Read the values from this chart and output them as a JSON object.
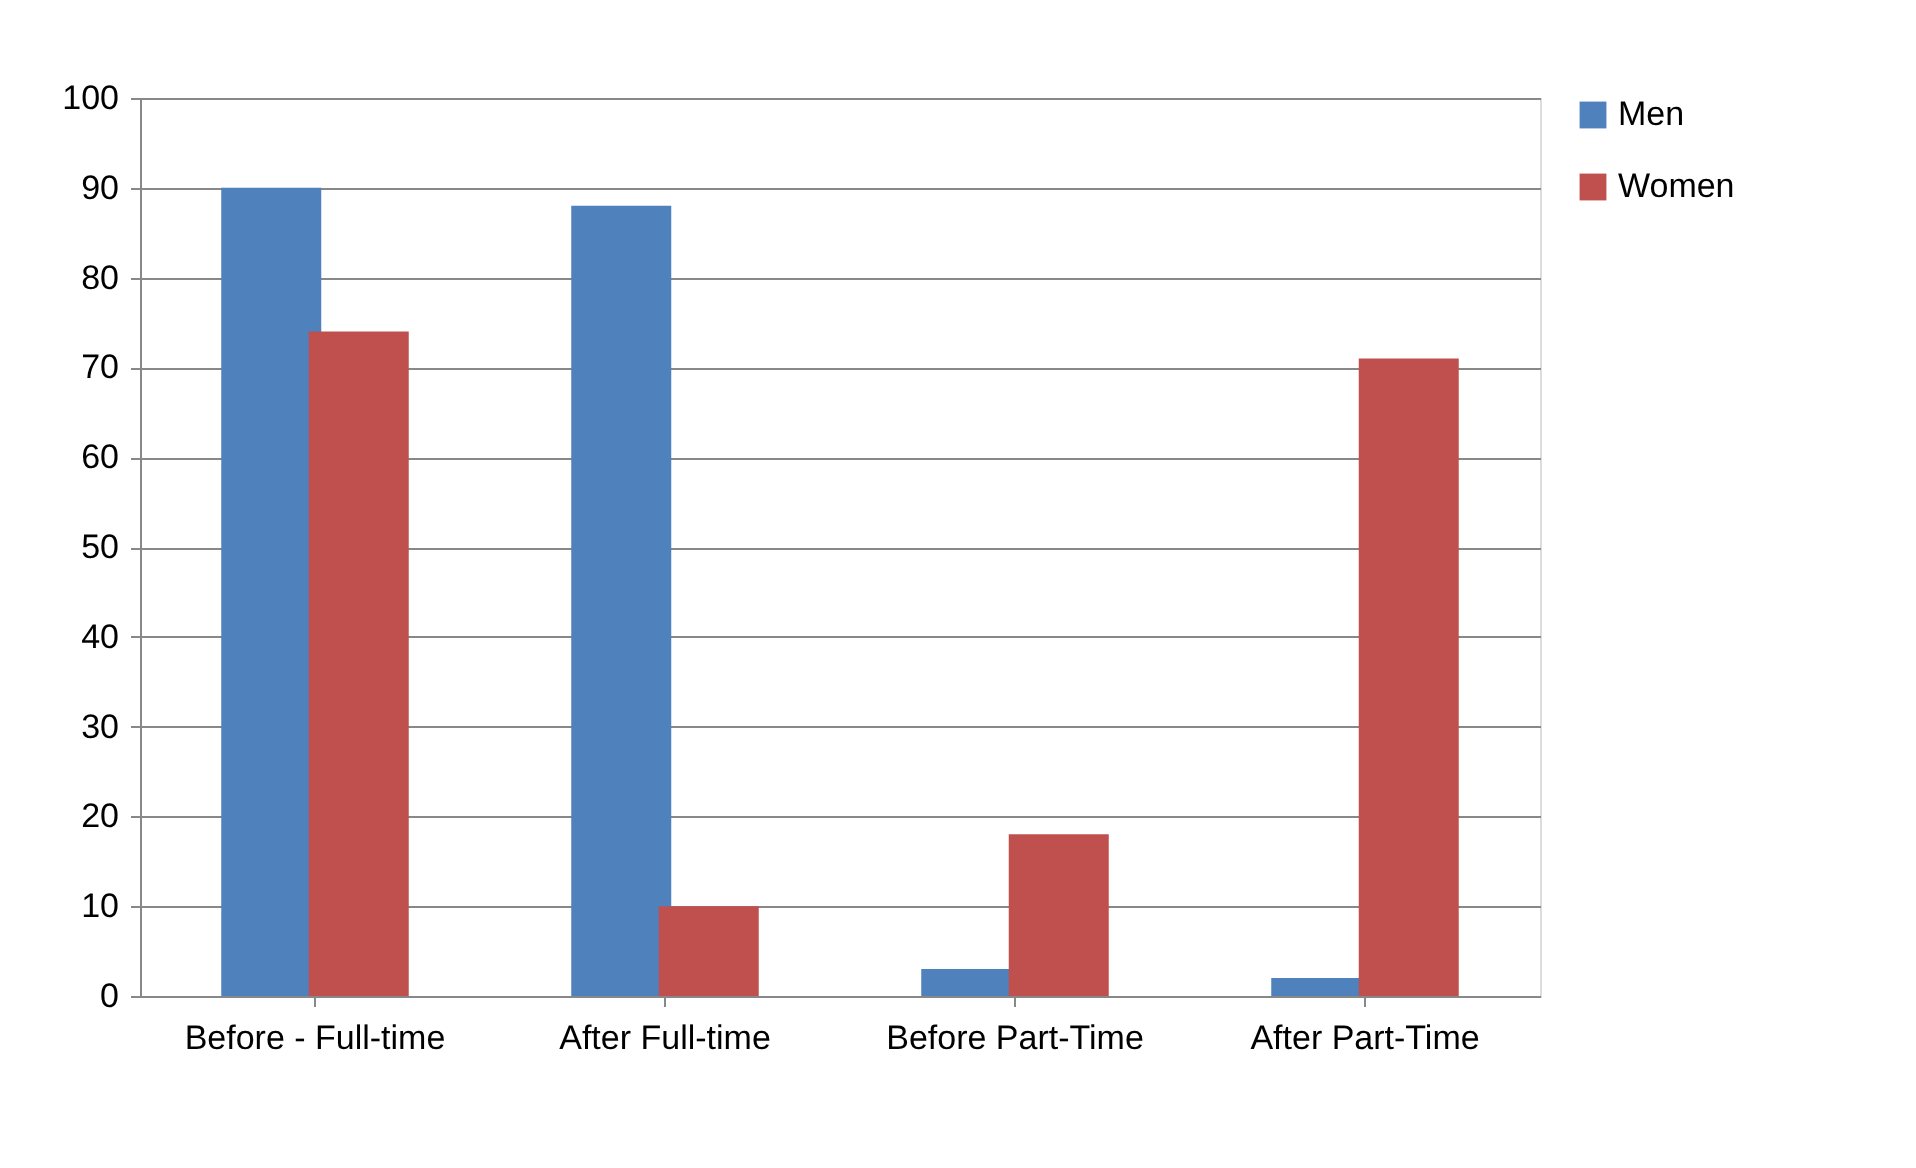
{
  "chart_data": {
    "type": "bar",
    "categories": [
      "Before - Full-time",
      "After Full-time",
      "Before Part-Time",
      "After Part-Time"
    ],
    "series": [
      {
        "name": "Men",
        "color": "#4f81bd",
        "values": [
          90,
          88,
          3,
          2
        ]
      },
      {
        "name": "Women",
        "color": "#c0504d",
        "values": [
          74,
          10,
          18,
          71
        ]
      }
    ],
    "ylim": [
      0,
      100
    ],
    "yticks": [
      0,
      10,
      20,
      30,
      40,
      50,
      60,
      70,
      80,
      90,
      100
    ],
    "grid": "y",
    "legend": "right"
  }
}
